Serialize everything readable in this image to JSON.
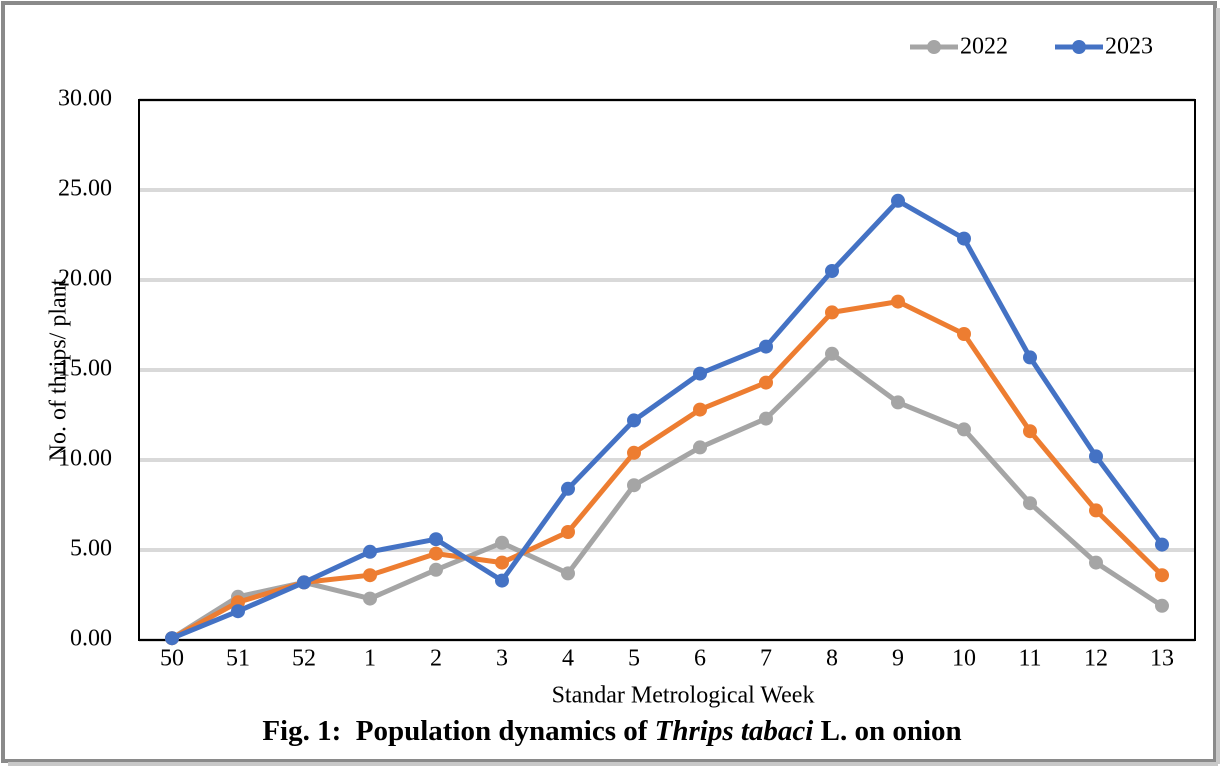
{
  "chart_data": {
    "type": "line",
    "y_label": "No. of thrips/ plant",
    "x_label": "Standar Metrological Week",
    "caption": {
      "prefix": "Fig. 1:  Population dynamics of ",
      "italic": "Thrips tabaci",
      "suffix": " L. on onion"
    },
    "categories": [
      "50",
      "51",
      "52",
      "1",
      "2",
      "3",
      "4",
      "5",
      "6",
      "7",
      "8",
      "9",
      "10",
      "11",
      "12",
      "13"
    ],
    "series": [
      {
        "name": "2022",
        "color": "#a5a5a5",
        "values": [
          0.1,
          2.4,
          3.2,
          2.3,
          3.9,
          5.4,
          3.7,
          8.6,
          10.7,
          12.3,
          15.9,
          13.2,
          11.7,
          7.6,
          4.3,
          1.9
        ]
      },
      {
        "color": "#ed7d31",
        "values": [
          0.1,
          2.1,
          3.2,
          3.6,
          4.8,
          4.3,
          6.0,
          10.4,
          12.8,
          14.3,
          18.2,
          18.8,
          17.0,
          11.6,
          7.2,
          3.6
        ]
      },
      {
        "name": "2023",
        "color": "#4472c4",
        "values": [
          0.1,
          1.6,
          3.2,
          4.9,
          5.6,
          3.3,
          8.4,
          12.2,
          14.8,
          16.3,
          20.5,
          24.4,
          22.3,
          15.7,
          10.2,
          5.3
        ]
      }
    ],
    "ylim": [
      0,
      30
    ],
    "yticks": [
      {
        "value": 0,
        "label": "0.00"
      },
      {
        "value": 5,
        "label": "5.00"
      },
      {
        "value": 10,
        "label": "10.00"
      },
      {
        "value": 15,
        "label": "15.00"
      },
      {
        "value": 20,
        "label": "20.00"
      },
      {
        "value": 25,
        "label": "25.00"
      },
      {
        "value": 30,
        "label": "30.00"
      }
    ],
    "grid": true,
    "legend": "top-right"
  }
}
